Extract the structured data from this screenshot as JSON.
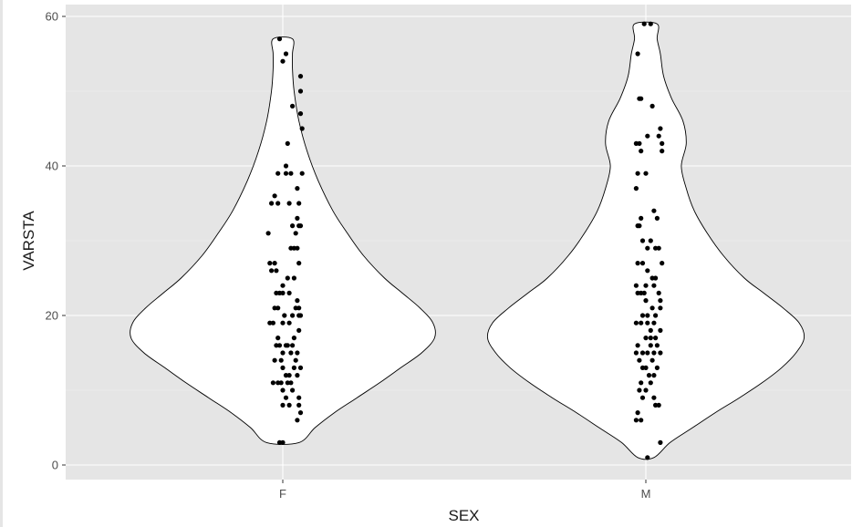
{
  "chart_data": {
    "type": "violin",
    "xlabel": "SEX",
    "ylabel": "VARSTA",
    "categories": [
      "F",
      "M"
    ],
    "ylim": [
      -2,
      61
    ],
    "yticks": [
      0,
      20,
      40,
      60
    ],
    "grid": true,
    "panel_background": "#e5e5e5",
    "violin_fill": "#ffffff",
    "violin_stroke": "#000000",
    "point_color": "#000000",
    "violins": [
      {
        "category": "F",
        "min": 3,
        "max": 57,
        "half_width": [
          [
            3,
            0.1
          ],
          [
            5,
            0.2
          ],
          [
            7,
            0.32
          ],
          [
            9,
            0.46
          ],
          [
            11,
            0.6
          ],
          [
            13,
            0.73
          ],
          [
            15,
            0.86
          ],
          [
            17,
            0.94
          ],
          [
            19,
            0.93
          ],
          [
            21,
            0.85
          ],
          [
            23,
            0.74
          ],
          [
            25,
            0.63
          ],
          [
            28,
            0.5
          ],
          [
            31,
            0.4
          ],
          [
            34,
            0.31
          ],
          [
            38,
            0.22
          ],
          [
            42,
            0.15
          ],
          [
            46,
            0.1
          ],
          [
            50,
            0.07
          ],
          [
            53,
            0.06
          ],
          [
            55,
            0.06
          ],
          [
            57,
            0.06
          ]
        ],
        "points": [
          [
            -0.02,
            57
          ],
          [
            0.02,
            55
          ],
          [
            0.0,
            54
          ],
          [
            0.11,
            52
          ],
          [
            0.11,
            50
          ],
          [
            0.06,
            48
          ],
          [
            0.11,
            47
          ],
          [
            0.12,
            45
          ],
          [
            0.03,
            43
          ],
          [
            0.02,
            40
          ],
          [
            -0.03,
            39
          ],
          [
            0.02,
            39
          ],
          [
            0.05,
            39
          ],
          [
            0.12,
            39
          ],
          [
            0.09,
            37
          ],
          [
            -0.05,
            36
          ],
          [
            -0.03,
            35
          ],
          [
            0.04,
            35
          ],
          [
            0.1,
            35
          ],
          [
            -0.07,
            35
          ],
          [
            0.09,
            33
          ],
          [
            0.06,
            32
          ],
          [
            0.1,
            32
          ],
          [
            0.11,
            32
          ],
          [
            0.08,
            31
          ],
          [
            -0.09,
            31
          ],
          [
            0.07,
            29
          ],
          [
            0.09,
            29
          ],
          [
            0.05,
            29
          ],
          [
            0.1,
            27
          ],
          [
            -0.08,
            27
          ],
          [
            -0.05,
            27
          ],
          [
            -0.07,
            26
          ],
          [
            -0.04,
            26
          ],
          [
            0.07,
            25
          ],
          [
            0.03,
            25
          ],
          [
            0.0,
            24
          ],
          [
            -0.02,
            23
          ],
          [
            -0.04,
            23
          ],
          [
            0.0,
            23
          ],
          [
            0.04,
            23
          ],
          [
            0.09,
            22
          ],
          [
            -0.03,
            21
          ],
          [
            0.08,
            21
          ],
          [
            0.1,
            21
          ],
          [
            -0.05,
            21
          ],
          [
            0.01,
            20
          ],
          [
            0.06,
            20
          ],
          [
            0.11,
            20
          ],
          [
            0.1,
            20
          ],
          [
            -0.08,
            19
          ],
          [
            -0.06,
            19
          ],
          [
            0.0,
            19
          ],
          [
            0.04,
            19
          ],
          [
            0.1,
            18
          ],
          [
            -0.03,
            17
          ],
          [
            0.07,
            17
          ],
          [
            0.02,
            16
          ],
          [
            -0.02,
            16
          ],
          [
            -0.04,
            16
          ],
          [
            0.03,
            16
          ],
          [
            0.06,
            16
          ],
          [
            0.05,
            15
          ],
          [
            0.09,
            15
          ],
          [
            0.0,
            15
          ],
          [
            -0.01,
            14
          ],
          [
            -0.05,
            14
          ],
          [
            0.08,
            14
          ],
          [
            0.11,
            13
          ],
          [
            0.0,
            13
          ],
          [
            0.07,
            13
          ],
          [
            0.04,
            12
          ],
          [
            0.02,
            12
          ],
          [
            0.09,
            12
          ],
          [
            -0.03,
            11
          ],
          [
            -0.01,
            11
          ],
          [
            0.03,
            11
          ],
          [
            0.05,
            11
          ],
          [
            -0.06,
            11
          ],
          [
            0.0,
            10
          ],
          [
            0.06,
            10
          ],
          [
            0.02,
            9
          ],
          [
            0.1,
            9
          ],
          [
            0.0,
            8
          ],
          [
            0.04,
            8
          ],
          [
            0.1,
            8
          ],
          [
            0.11,
            7
          ],
          [
            0.09,
            6
          ],
          [
            -0.02,
            3
          ],
          [
            0.0,
            3
          ]
        ]
      },
      {
        "category": "M",
        "min": 1,
        "max": 59,
        "half_width": [
          [
            1,
            0.05
          ],
          [
            3,
            0.15
          ],
          [
            5,
            0.29
          ],
          [
            7,
            0.43
          ],
          [
            9,
            0.58
          ],
          [
            11,
            0.72
          ],
          [
            13,
            0.84
          ],
          [
            15,
            0.93
          ],
          [
            17,
            0.98
          ],
          [
            19,
            0.95
          ],
          [
            21,
            0.85
          ],
          [
            23,
            0.73
          ],
          [
            25,
            0.61
          ],
          [
            28,
            0.48
          ],
          [
            31,
            0.38
          ],
          [
            34,
            0.3
          ],
          [
            37,
            0.25
          ],
          [
            40,
            0.22
          ],
          [
            43,
            0.25
          ],
          [
            46,
            0.23
          ],
          [
            49,
            0.16
          ],
          [
            52,
            0.11
          ],
          [
            55,
            0.09
          ],
          [
            57,
            0.07
          ],
          [
            59,
            0.07
          ]
        ],
        "points": [
          [
            -0.01,
            59
          ],
          [
            0.03,
            59
          ],
          [
            -0.05,
            55
          ],
          [
            -0.04,
            49
          ],
          [
            -0.03,
            49
          ],
          [
            0.04,
            48
          ],
          [
            0.09,
            45
          ],
          [
            0.01,
            44
          ],
          [
            0.08,
            44
          ],
          [
            -0.04,
            43
          ],
          [
            0.1,
            43
          ],
          [
            -0.06,
            43
          ],
          [
            -0.03,
            42
          ],
          [
            0.1,
            42
          ],
          [
            -0.05,
            39
          ],
          [
            0.0,
            39
          ],
          [
            -0.06,
            37
          ],
          [
            0.05,
            34
          ],
          [
            0.07,
            33
          ],
          [
            -0.03,
            33
          ],
          [
            -0.05,
            32
          ],
          [
            -0.04,
            32
          ],
          [
            -0.02,
            30
          ],
          [
            0.03,
            30
          ],
          [
            0.01,
            29
          ],
          [
            0.06,
            29
          ],
          [
            0.08,
            29
          ],
          [
            -0.02,
            27
          ],
          [
            -0.05,
            27
          ],
          [
            0.1,
            27
          ],
          [
            0.01,
            26
          ],
          [
            0.04,
            25
          ],
          [
            0.06,
            25
          ],
          [
            -0.06,
            24
          ],
          [
            0.0,
            24
          ],
          [
            0.05,
            24
          ],
          [
            0.08,
            23
          ],
          [
            -0.03,
            23
          ],
          [
            -0.01,
            23
          ],
          [
            -0.05,
            23
          ],
          [
            0.09,
            22
          ],
          [
            0.0,
            22
          ],
          [
            0.04,
            21
          ],
          [
            0.09,
            21
          ],
          [
            0.01,
            20
          ],
          [
            -0.02,
            20
          ],
          [
            0.06,
            20
          ],
          [
            -0.06,
            19
          ],
          [
            -0.03,
            19
          ],
          [
            0.01,
            19
          ],
          [
            0.05,
            19
          ],
          [
            0.03,
            18
          ],
          [
            0.09,
            18
          ],
          [
            0.06,
            17
          ],
          [
            0.0,
            17
          ],
          [
            0.03,
            17
          ],
          [
            -0.05,
            16
          ],
          [
            0.07,
            16
          ],
          [
            0.03,
            16
          ],
          [
            -0.02,
            15
          ],
          [
            0.01,
            15
          ],
          [
            0.05,
            15
          ],
          [
            0.09,
            15
          ],
          [
            -0.06,
            15
          ],
          [
            0.04,
            14
          ],
          [
            -0.04,
            14
          ],
          [
            0.0,
            13
          ],
          [
            -0.02,
            13
          ],
          [
            0.07,
            13
          ],
          [
            0.02,
            12
          ],
          [
            0.05,
            12
          ],
          [
            -0.03,
            11
          ],
          [
            0.03,
            11
          ],
          [
            0.0,
            10
          ],
          [
            -0.04,
            10
          ],
          [
            0.05,
            9
          ],
          [
            -0.02,
            9
          ],
          [
            0.06,
            8
          ],
          [
            0.08,
            8
          ],
          [
            -0.05,
            7
          ],
          [
            -0.03,
            6
          ],
          [
            -0.06,
            6
          ],
          [
            0.09,
            3
          ],
          [
            0.01,
            1
          ]
        ]
      }
    ]
  }
}
